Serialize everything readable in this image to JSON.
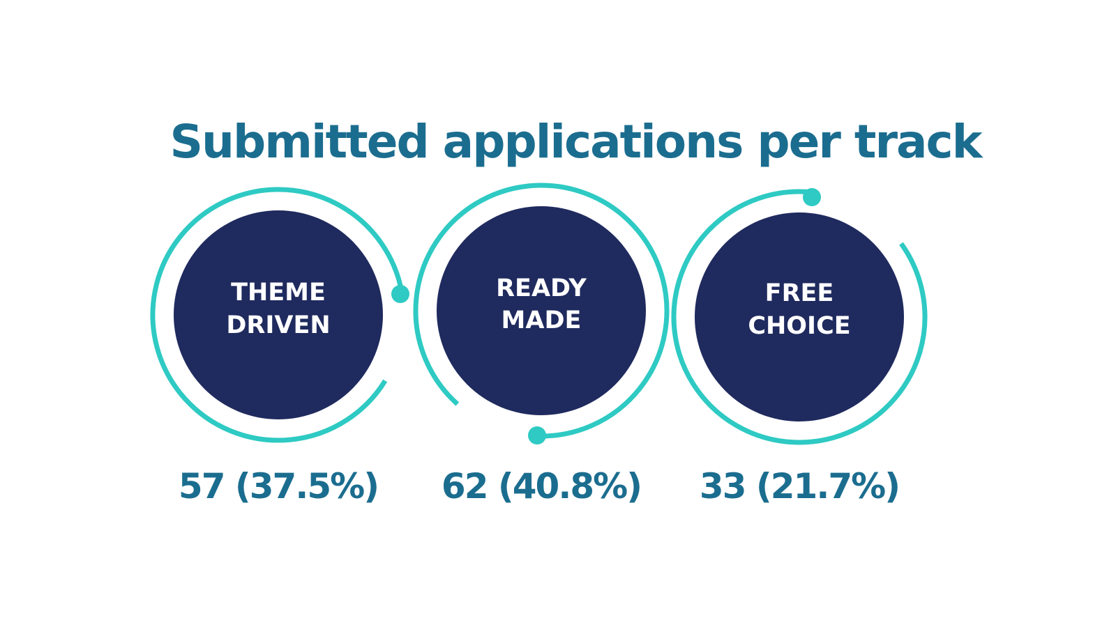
{
  "colors": {
    "title": "#1b6d8f",
    "accent": "#2ecac3",
    "disc": "#1f2a5e",
    "disc_text": "#ffffff",
    "value_text": "#1b6d8f"
  },
  "chart_data": {
    "type": "donut",
    "title": "Submitted applications per track",
    "unit": "applications",
    "categories": [
      "THEME DRIVEN",
      "READY MADE",
      "FREE CHOICE"
    ],
    "items": [
      {
        "label_lines": [
          "THEME",
          "DRIVEN"
        ],
        "count": 57,
        "percent": 37.5,
        "value_label": "57 (37.5%)"
      },
      {
        "label_lines": [
          "READY",
          "MADE"
        ],
        "count": 62,
        "percent": 40.8,
        "value_label": "62 (40.8%)"
      },
      {
        "label_lines": [
          "FREE",
          "CHOICE"
        ],
        "count": 33,
        "percent": 21.7,
        "value_label": "33 (21.7%)"
      }
    ]
  }
}
